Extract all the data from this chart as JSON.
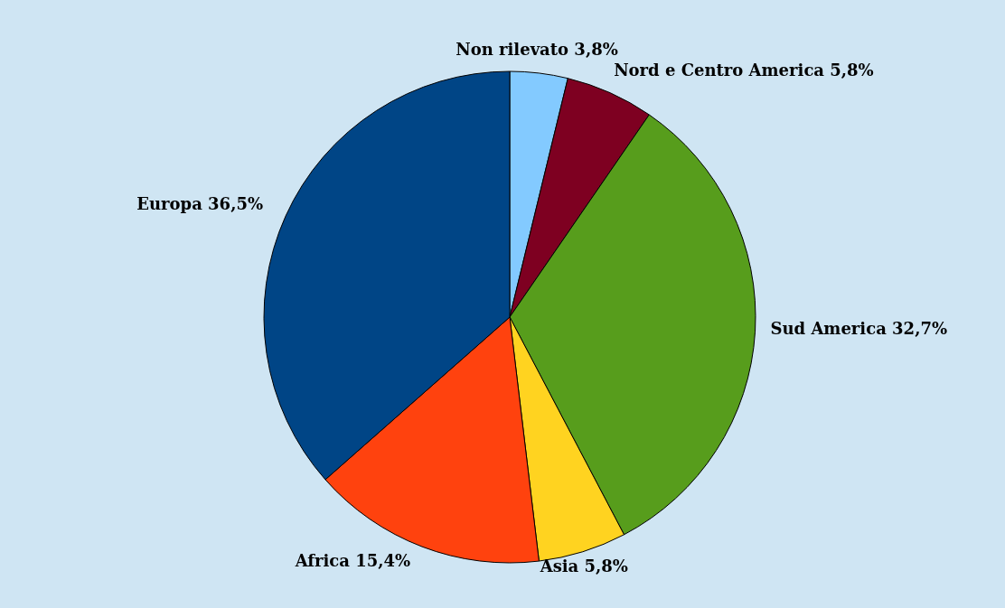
{
  "chart_data": {
    "type": "pie",
    "categories": [
      "Non rilevato",
      "Nord e Centro America",
      "Sud America",
      "Asia",
      "Africa",
      "Europa"
    ],
    "values": [
      3.8,
      5.8,
      32.7,
      5.8,
      15.4,
      36.5
    ],
    "value_labels": [
      "3,8%",
      "5,8%",
      "32,7%",
      "5,8%",
      "15,4%",
      "36,5%"
    ],
    "colors": [
      "#83caff",
      "#7e0021",
      "#579d1c",
      "#ffd320",
      "#ff420e",
      "#004586"
    ],
    "legend": false
  }
}
